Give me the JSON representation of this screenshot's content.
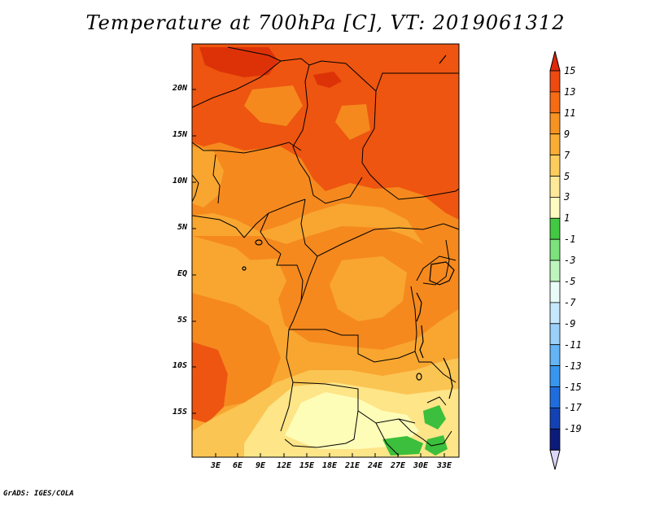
{
  "title": "Temperature at 700hPa [C], VT: 2019061312",
  "credit": "GrADS: IGES/COLA",
  "map": {
    "lat_labels": [
      "20N",
      "15N",
      "10N",
      "5N",
      "EQ",
      "5S",
      "10S",
      "15S"
    ],
    "lon_labels": [
      "3E",
      "6E",
      "9E",
      "12E",
      "15E",
      "18E",
      "21E",
      "24E",
      "27E",
      "30E",
      "33E"
    ],
    "fill_colors": {
      "t15": "#dd3208",
      "t13": "#ee5510",
      "t11": "#f5891e",
      "t9": "#f8a630",
      "t7": "#fbc553",
      "t5": "#fde588",
      "t3": "#fefdb8",
      "t1": "#3cbf3c",
      "water": "#f5891e"
    }
  },
  "colorbar": {
    "labels": [
      "15",
      "13",
      "11",
      "9",
      "7",
      "5",
      "3",
      "1",
      "-1",
      "-3",
      "-5",
      "-7",
      "-9",
      "-11",
      "-13",
      "-15",
      "-17",
      "-19"
    ],
    "colors": [
      "#ee4a10",
      "#f56c14",
      "#f79322",
      "#faad34",
      "#fccd5c",
      "#fee998",
      "#fefcc2",
      "#42c842",
      "#7ce27c",
      "#bef5be",
      "#eafcfa",
      "#c6e8fc",
      "#9ad0fa",
      "#64b4f6",
      "#3896ee",
      "#1f6ddc",
      "#1342b4",
      "#0c1a7a"
    ],
    "top_triangle": "#dd2a0a",
    "bottom_triangle": "#dcd7fa"
  }
}
